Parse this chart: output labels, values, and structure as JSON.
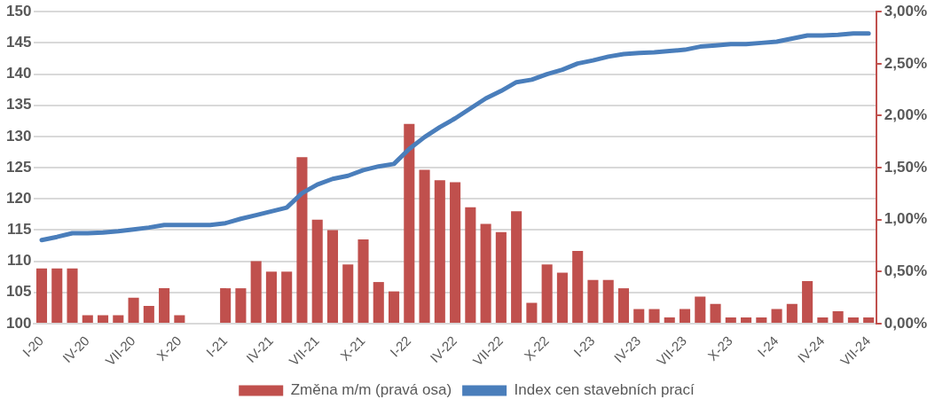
{
  "chart_data": {
    "type": "bar",
    "categories": [
      "I-20",
      null,
      null,
      "IV-20",
      null,
      null,
      "VII-20",
      null,
      null,
      "X-20",
      null,
      null,
      "I-21",
      null,
      null,
      "IV-21",
      null,
      null,
      "VII-21",
      null,
      null,
      "X-21",
      null,
      null,
      "I-22",
      null,
      null,
      "IV-22",
      null,
      null,
      "VII-22",
      null,
      null,
      "X-22",
      null,
      null,
      "I-23",
      null,
      null,
      "IV-23",
      null,
      null,
      "VII-23",
      null,
      null,
      "X-23",
      null,
      null,
      "I-24",
      null,
      null,
      "IV-24",
      null,
      null,
      "VII-24"
    ],
    "series": [
      {
        "name": "Změna m/m (pravá osa)",
        "axis": "y2",
        "color": "#c0504d",
        "values": [
          0.53,
          0.53,
          0.53,
          0.08,
          0.08,
          0.08,
          0.25,
          0.17,
          0.34,
          0.08,
          0,
          0,
          0.34,
          0.34,
          0.6,
          0.5,
          0.5,
          1.6,
          1.0,
          0.9,
          0.57,
          0.81,
          0.4,
          0.31,
          1.92,
          1.48,
          1.38,
          1.36,
          1.12,
          0.96,
          0.88,
          1.08,
          0.2,
          0.57,
          0.49,
          0.7,
          0.42,
          0.42,
          0.34,
          0.14,
          0.14,
          0.06,
          0.14,
          0.26,
          0.19,
          0.06,
          0.06,
          0.06,
          0.14,
          0.19,
          0.41,
          0.06,
          0.12,
          0.06,
          0.06
        ]
      },
      {
        "name": "Index cen stavebních prací",
        "type": "line",
        "axis": "y",
        "color": "#4a7ebb",
        "values": [
          113.4,
          113.9,
          114.5,
          114.5,
          114.6,
          114.8,
          115.1,
          115.4,
          115.8,
          115.8,
          115.8,
          115.8,
          116.1,
          116.8,
          117.4,
          118.0,
          118.6,
          120.9,
          122.3,
          123.2,
          123.7,
          124.6,
          125.2,
          125.6,
          128.0,
          129.9,
          131.5,
          132.9,
          134.5,
          136.1,
          137.3,
          138.7,
          139.1,
          140.0,
          140.7,
          141.7,
          142.2,
          142.8,
          143.2,
          143.4,
          143.5,
          143.7,
          143.9,
          144.4,
          144.6,
          144.8,
          144.8,
          145.0,
          145.2,
          145.7,
          146.2,
          146.2,
          146.3,
          146.5,
          146.5
        ]
      }
    ],
    "ylim": [
      100,
      150
    ],
    "yticks": [
      100,
      105,
      110,
      115,
      120,
      125,
      130,
      135,
      140,
      145,
      150
    ],
    "y2lim": [
      0,
      3
    ],
    "y2ticks": [
      {
        "value": 0,
        "label": "0,00%"
      },
      {
        "value": 0.5,
        "label": "0,50%"
      },
      {
        "value": 1,
        "label": "1,00%"
      },
      {
        "value": 1.5,
        "label": "1,50%"
      },
      {
        "value": 2,
        "label": "2,00%"
      },
      {
        "value": 2.5,
        "label": "2,50%"
      },
      {
        "value": 3,
        "label": "3,00%"
      }
    ],
    "grid": "y",
    "legend": "bottom",
    "marker": "none",
    "line_style": "solid"
  }
}
